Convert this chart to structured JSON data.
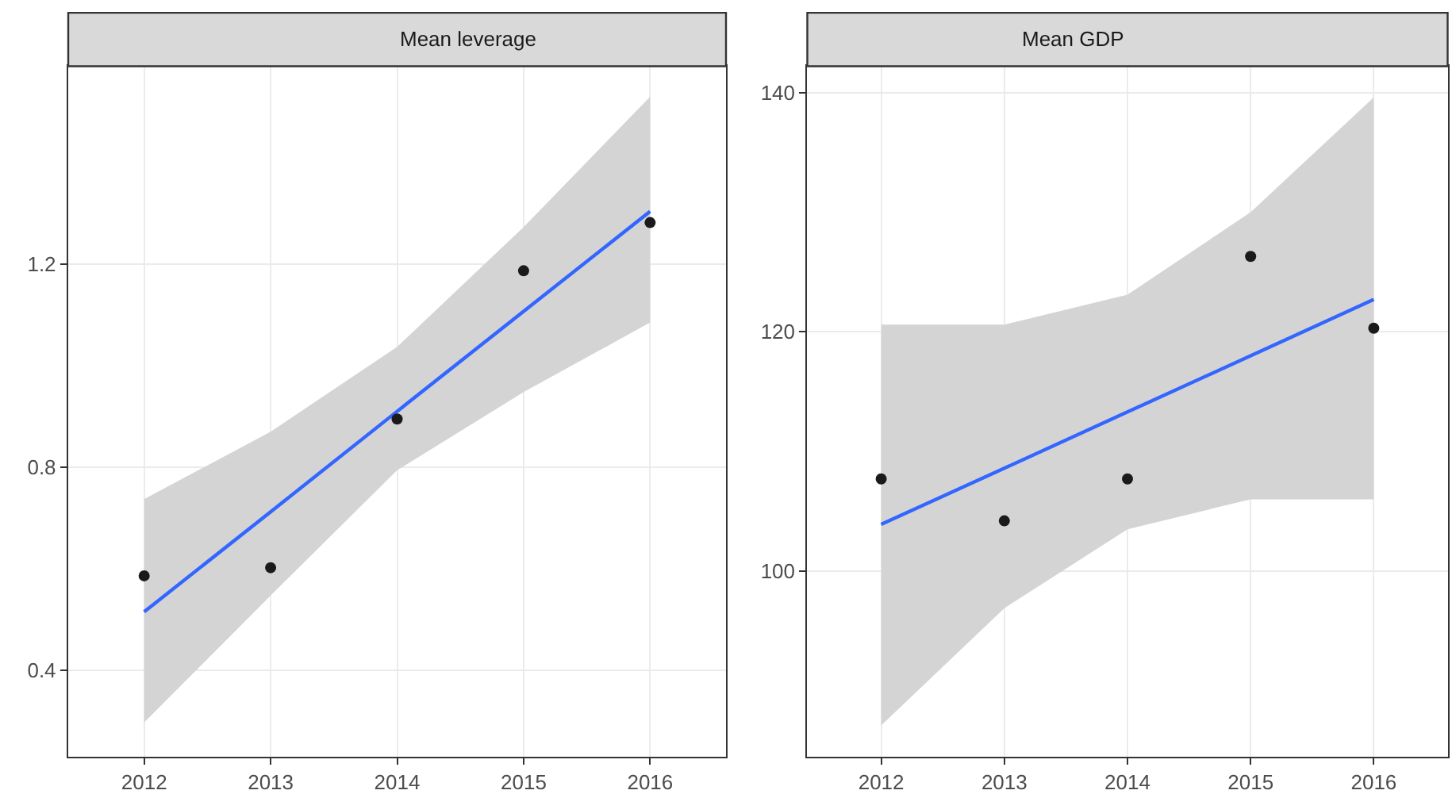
{
  "chart_data": [
    {
      "type": "scatter",
      "title": "Mean leverage",
      "x": [
        2012,
        2013,
        2014,
        2015,
        2016
      ],
      "xlim": [
        2011.4,
        2016.6
      ],
      "xticks": [
        2012,
        2013,
        2014,
        2015,
        2016
      ],
      "ylim": [
        0.23,
        1.59
      ],
      "yticks": [
        0.4,
        0.8,
        1.2
      ],
      "grid": true,
      "series": [
        {
          "color": "#1a1a1a",
          "marker": "circle",
          "values": [
            0.586,
            0.602,
            0.895,
            1.187,
            1.282
          ]
        },
        {
          "type": "line",
          "color": "#3366ff",
          "marker": "none",
          "values": [
            0.515,
            0.712,
            0.91,
            1.107,
            1.304
          ],
          "lower": [
            0.297,
            0.547,
            0.794,
            0.948,
            1.085
          ],
          "upper": [
            0.737,
            0.87,
            1.037,
            1.273,
            1.53
          ]
        }
      ]
    },
    {
      "type": "scatter",
      "title": "Mean GDP",
      "x": [
        2012,
        2013,
        2014,
        2015,
        2016
      ],
      "xlim": [
        2011.4,
        2016.6
      ],
      "xticks": [
        2012,
        2013,
        2014,
        2015,
        2016
      ],
      "ylim": [
        84.5,
        142.2
      ],
      "yticks": [
        100,
        120,
        140
      ],
      "grid": true,
      "series": [
        {
          "color": "#1a1a1a",
          "marker": "circle",
          "values": [
            107.7,
            104.2,
            107.7,
            126.3,
            120.3
          ]
        },
        {
          "type": "line",
          "color": "#3366ff",
          "marker": "none",
          "values": [
            103.9,
            108.6,
            113.3,
            118.0,
            122.7
          ],
          "lower": [
            87.1,
            96.9,
            103.5,
            106.0,
            106.0
          ],
          "upper": [
            120.6,
            120.6,
            123.1,
            130.0,
            139.6
          ]
        }
      ]
    }
  ]
}
